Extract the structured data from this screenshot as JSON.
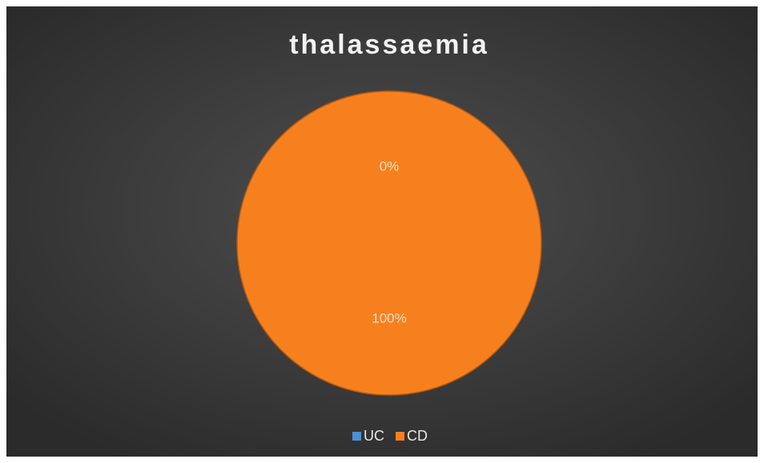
{
  "chart_data": {
    "type": "pie",
    "title": "thalassaemia",
    "categories": [
      "UC",
      "CD"
    ],
    "values": [
      0,
      100
    ],
    "value_labels": [
      "0%",
      "100%"
    ],
    "colors": [
      "#4f8fd6",
      "#f7801e"
    ],
    "legend": "bottom"
  }
}
